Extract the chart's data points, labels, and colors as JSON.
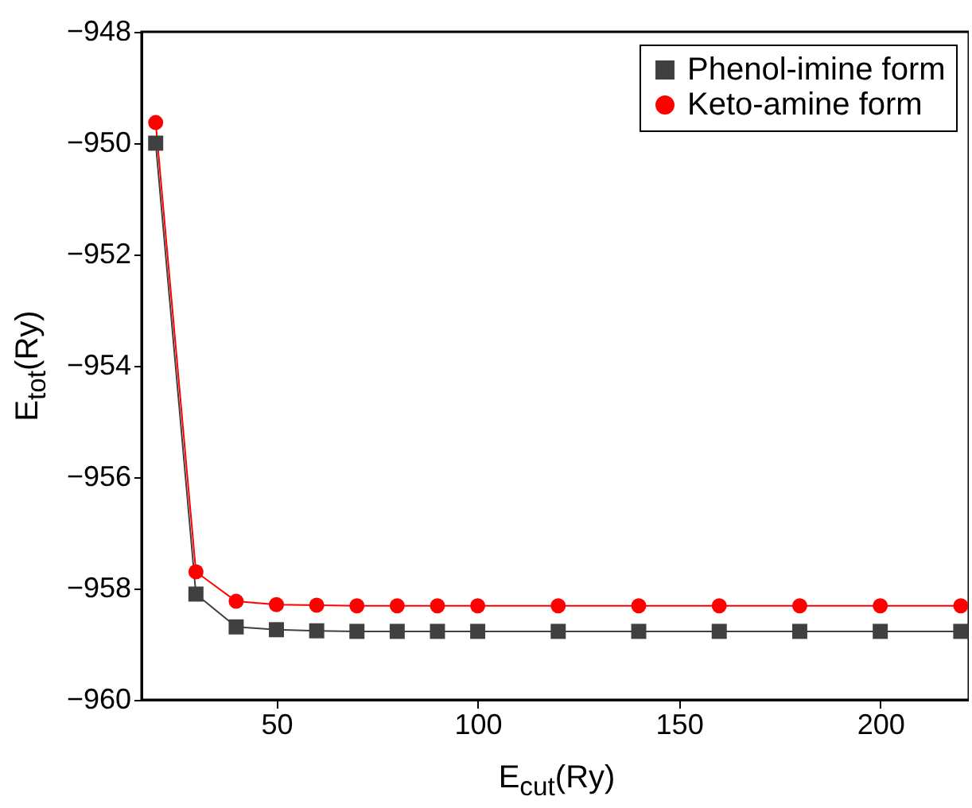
{
  "chart_data": {
    "type": "line",
    "xlabel": "E$_{cut}$(Ry)",
    "ylabel": "E$_{tot}$(Ry)",
    "x": [
      20,
      30,
      40,
      50,
      60,
      70,
      80,
      90,
      100,
      120,
      140,
      160,
      180,
      200,
      220
    ],
    "series": [
      {
        "name": "Phenol-imine form",
        "color": "#404040",
        "marker": "square",
        "values": [
          -950.0,
          -958.1,
          -958.69,
          -958.74,
          -958.76,
          -958.77,
          -958.77,
          -958.77,
          -958.77,
          -958.77,
          -958.77,
          -958.77,
          -958.77,
          -958.77,
          -958.77
        ]
      },
      {
        "name": "Keto-amine form",
        "color": "#ff0000",
        "marker": "circle",
        "values": [
          -949.63,
          -957.7,
          -958.23,
          -958.29,
          -958.3,
          -958.31,
          -958.31,
          -958.31,
          -958.31,
          -958.31,
          -958.31,
          -958.31,
          -958.31,
          -958.31,
          -958.31
        ]
      }
    ],
    "xlim": [
      16.5,
      222
    ],
    "xticks": [
      50,
      100,
      150,
      200
    ],
    "ylim": [
      -960,
      -948
    ],
    "yticks": [
      -960,
      -958,
      -956,
      -954,
      -952,
      -950,
      -948
    ],
    "legend": "top right",
    "grid": false,
    "line_style": "solid"
  }
}
